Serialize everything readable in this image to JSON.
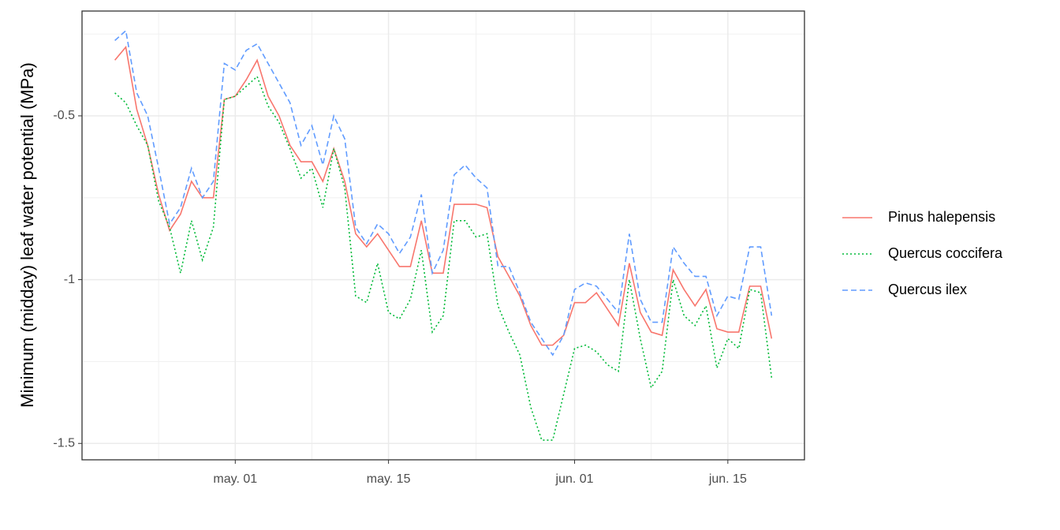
{
  "chart_data": {
    "type": "line",
    "y_label": "Minimum (midday) leaf water potential (MPa)",
    "x": [
      "04-20",
      "04-21",
      "04-22",
      "04-23",
      "04-24",
      "04-25",
      "04-26",
      "04-27",
      "04-28",
      "04-29",
      "04-30",
      "05-01",
      "05-02",
      "05-03",
      "05-04",
      "05-05",
      "05-06",
      "05-07",
      "05-08",
      "05-09",
      "05-10",
      "05-11",
      "05-12",
      "05-13",
      "05-14",
      "05-15",
      "05-16",
      "05-17",
      "05-18",
      "05-19",
      "05-20",
      "05-21",
      "05-22",
      "05-23",
      "05-24",
      "05-25",
      "05-26",
      "05-27",
      "05-28",
      "05-29",
      "05-30",
      "05-31",
      "06-01",
      "06-02",
      "06-03",
      "06-04",
      "06-05",
      "06-06",
      "06-07",
      "06-08",
      "06-09",
      "06-10",
      "06-11",
      "06-12",
      "06-13",
      "06-14",
      "06-15",
      "06-16",
      "06-17",
      "06-18",
      "06-19"
    ],
    "series": [
      {
        "name": "Pinus halepensis",
        "color": "#F8766D",
        "dash": "solid",
        "values": [
          -0.33,
          -0.29,
          -0.48,
          -0.59,
          -0.74,
          -0.85,
          -0.8,
          -0.7,
          -0.75,
          -0.75,
          -0.45,
          -0.44,
          -0.39,
          -0.33,
          -0.44,
          -0.5,
          -0.59,
          -0.64,
          -0.64,
          -0.7,
          -0.6,
          -0.7,
          -0.86,
          -0.9,
          -0.86,
          -0.91,
          -0.96,
          -0.96,
          -0.82,
          -0.98,
          -0.98,
          -0.77,
          -0.77,
          -0.77,
          -0.78,
          -0.93,
          -0.99,
          -1.05,
          -1.14,
          -1.2,
          -1.2,
          -1.17,
          -1.07,
          -1.07,
          -1.04,
          -1.09,
          -1.14,
          -0.95,
          -1.1,
          -1.16,
          -1.17,
          -0.97,
          -1.03,
          -1.08,
          -1.03,
          -1.15,
          -1.16,
          -1.16,
          -1.02,
          -1.02,
          -1.18
        ]
      },
      {
        "name": "Quercus coccifera",
        "color": "#00BA38",
        "dash": "dotted",
        "values": [
          -0.43,
          -0.46,
          -0.53,
          -0.59,
          -0.76,
          -0.84,
          -0.98,
          -0.82,
          -0.94,
          -0.84,
          -0.45,
          -0.44,
          -0.41,
          -0.38,
          -0.47,
          -0.52,
          -0.6,
          -0.69,
          -0.66,
          -0.78,
          -0.6,
          -0.72,
          -1.05,
          -1.07,
          -0.95,
          -1.1,
          -1.12,
          -1.06,
          -0.91,
          -1.16,
          -1.11,
          -0.82,
          -0.82,
          -0.87,
          -0.86,
          -1.08,
          -1.16,
          -1.23,
          -1.39,
          -1.49,
          -1.49,
          -1.35,
          -1.21,
          -1.2,
          -1.22,
          -1.26,
          -1.28,
          -1.0,
          -1.18,
          -1.33,
          -1.28,
          -1.0,
          -1.11,
          -1.14,
          -1.08,
          -1.27,
          -1.18,
          -1.21,
          -1.03,
          -1.04,
          -1.3
        ]
      },
      {
        "name": "Quercus ilex",
        "color": "#619CFF",
        "dash": "dashed",
        "values": [
          -0.27,
          -0.24,
          -0.43,
          -0.5,
          -0.66,
          -0.83,
          -0.78,
          -0.66,
          -0.75,
          -0.7,
          -0.34,
          -0.36,
          -0.3,
          -0.28,
          -0.34,
          -0.4,
          -0.46,
          -0.59,
          -0.53,
          -0.65,
          -0.5,
          -0.57,
          -0.84,
          -0.89,
          -0.83,
          -0.86,
          -0.92,
          -0.87,
          -0.74,
          -0.98,
          -0.91,
          -0.68,
          -0.65,
          -0.69,
          -0.72,
          -0.96,
          -0.96,
          -1.04,
          -1.13,
          -1.18,
          -1.23,
          -1.17,
          -1.03,
          -1.01,
          -1.02,
          -1.06,
          -1.1,
          -0.86,
          -1.06,
          -1.13,
          -1.13,
          -0.9,
          -0.95,
          -0.99,
          -0.99,
          -1.11,
          -1.05,
          -1.06,
          -0.9,
          -0.9,
          -1.11
        ]
      }
    ],
    "xlim": [
      "04-17",
      "06-22"
    ],
    "xticks": [
      {
        "value": "05-01",
        "label": "may. 01"
      },
      {
        "value": "05-15",
        "label": "may. 15"
      },
      {
        "value": "06-01",
        "label": "jun. 01"
      },
      {
        "value": "06-15",
        "label": "jun. 15"
      }
    ],
    "x_minor_ticks": [
      "04-24",
      "05-08",
      "05-23",
      "06-08"
    ],
    "ylim": [
      -1.55,
      -0.18
    ],
    "yticks": [
      -1.5,
      -1.0,
      -0.5
    ],
    "y_minor_ticks": [
      -1.25,
      -0.75,
      -0.25
    ],
    "grid": true,
    "legend": "right"
  }
}
